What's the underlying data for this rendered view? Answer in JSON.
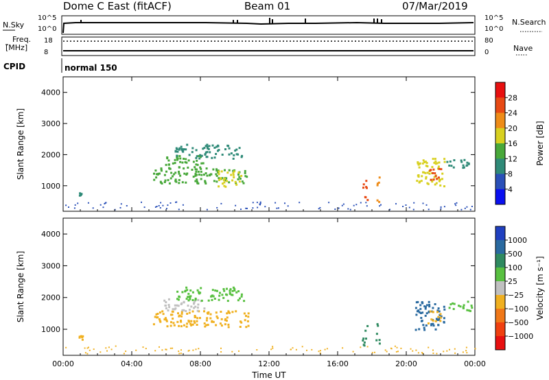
{
  "header": {
    "title": "Dome C East (fitACF)",
    "beam": "Beam 01",
    "date": "07/Mar/2019"
  },
  "side_labels": {
    "nsky": "N.Sky",
    "nsky_top": "10^5",
    "nsky_bottom": "10^0",
    "nsearch": "N.Search",
    "nsearch_top": "10^5",
    "nsearch_bottom": "10^0",
    "freq": "Freq.",
    "freq_unit": "[MHz]",
    "freq_top": "18",
    "freq_bottom": "8",
    "nave": "Nave",
    "nave_top": "80",
    "nave_bottom": "0",
    "cpid": "CPID",
    "cpid_value": "normal 150"
  },
  "chart_data": [
    {
      "type": "heatmap",
      "title": "",
      "xlabel": "Time UT",
      "ylabel": "Slant Range [km]",
      "xlim": [
        0,
        24
      ],
      "ylim": [
        180,
        4500
      ],
      "x_ticks": [
        "00:00",
        "04:00",
        "08:00",
        "12:00",
        "16:00",
        "20:00",
        "00:00"
      ],
      "y_ticks": [
        1000,
        2000,
        3000,
        4000
      ],
      "colorbar_label": "Power [dB]",
      "colorbar_ticks": [
        "4",
        "8",
        "12",
        "16",
        "20",
        "24",
        "28"
      ],
      "colorbar_colors": [
        "#0a10f0",
        "#2a50b8",
        "#2f8a78",
        "#48a83a",
        "#d8d020",
        "#ee8c18",
        "#e84a14",
        "#e81010"
      ],
      "regions": [
        {
          "t": [
            0.9,
            1.1
          ],
          "r": [
            700,
            820
          ],
          "value": 8
        },
        {
          "t": [
            5.2,
            10.8
          ],
          "r": [
            1100,
            1600
          ],
          "value": 12
        },
        {
          "t": [
            5.8,
            8.2
          ],
          "r": [
            1600,
            2000
          ],
          "value": 12
        },
        {
          "t": [
            6.5,
            10.5
          ],
          "r": [
            1900,
            2350
          ],
          "value": 8
        },
        {
          "t": [
            9.0,
            10.4
          ],
          "r": [
            1000,
            1500
          ],
          "value": 16
        },
        {
          "t": [
            17.4,
            17.7
          ],
          "r": [
            500,
            1200
          ],
          "value": 24
        },
        {
          "t": [
            18.2,
            18.4
          ],
          "r": [
            500,
            1300
          ],
          "value": 20
        },
        {
          "t": [
            20.5,
            22.2
          ],
          "r": [
            1000,
            1900
          ],
          "value": 16
        },
        {
          "t": [
            21.2,
            22.0
          ],
          "r": [
            1200,
            1600
          ],
          "value": 24
        },
        {
          "t": [
            22.3,
            23.8
          ],
          "r": [
            1600,
            1900
          ],
          "value": 8
        }
      ]
    },
    {
      "type": "heatmap",
      "title": "",
      "xlabel": "Time UT",
      "ylabel": "Slant Range [km]",
      "xlim": [
        0,
        24
      ],
      "ylim": [
        180,
        4500
      ],
      "x_ticks": [
        "00:00",
        "04:00",
        "08:00",
        "12:00",
        "16:00",
        "20:00",
        "00:00"
      ],
      "y_ticks": [
        1000,
        2000,
        3000,
        4000
      ],
      "colorbar_label": "Velocity [m s⁻¹]",
      "colorbar_ticks": [
        "1000",
        "500",
        "100",
        "25",
        "−25",
        "−100",
        "−500",
        "−1000"
      ],
      "colorbar_colors": [
        "#2040c0",
        "#2a6aa0",
        "#2f8a60",
        "#58c040",
        "#c0c0c0",
        "#f0b020",
        "#f07818",
        "#f04010",
        "#e81010"
      ],
      "regions": [
        {
          "t": [
            0.9,
            1.1
          ],
          "r": [
            700,
            820
          ],
          "value": -100
        },
        {
          "t": [
            5.2,
            10.8
          ],
          "r": [
            1100,
            1600
          ],
          "value": -100
        },
        {
          "t": [
            5.8,
            8.2
          ],
          "r": [
            1600,
            2000
          ],
          "value": -25
        },
        {
          "t": [
            6.5,
            10.5
          ],
          "r": [
            1900,
            2350
          ],
          "value": 25
        },
        {
          "t": [
            17.4,
            17.7
          ],
          "r": [
            500,
            1200
          ],
          "value": 100
        },
        {
          "t": [
            18.2,
            18.4
          ],
          "r": [
            500,
            1300
          ],
          "value": 100
        },
        {
          "t": [
            20.5,
            22.2
          ],
          "r": [
            1000,
            1900
          ],
          "value": 500
        },
        {
          "t": [
            21.2,
            22.0
          ],
          "r": [
            1200,
            1600
          ],
          "value": -100
        },
        {
          "t": [
            22.3,
            23.8
          ],
          "r": [
            1600,
            1900
          ],
          "value": 25
        }
      ]
    }
  ]
}
